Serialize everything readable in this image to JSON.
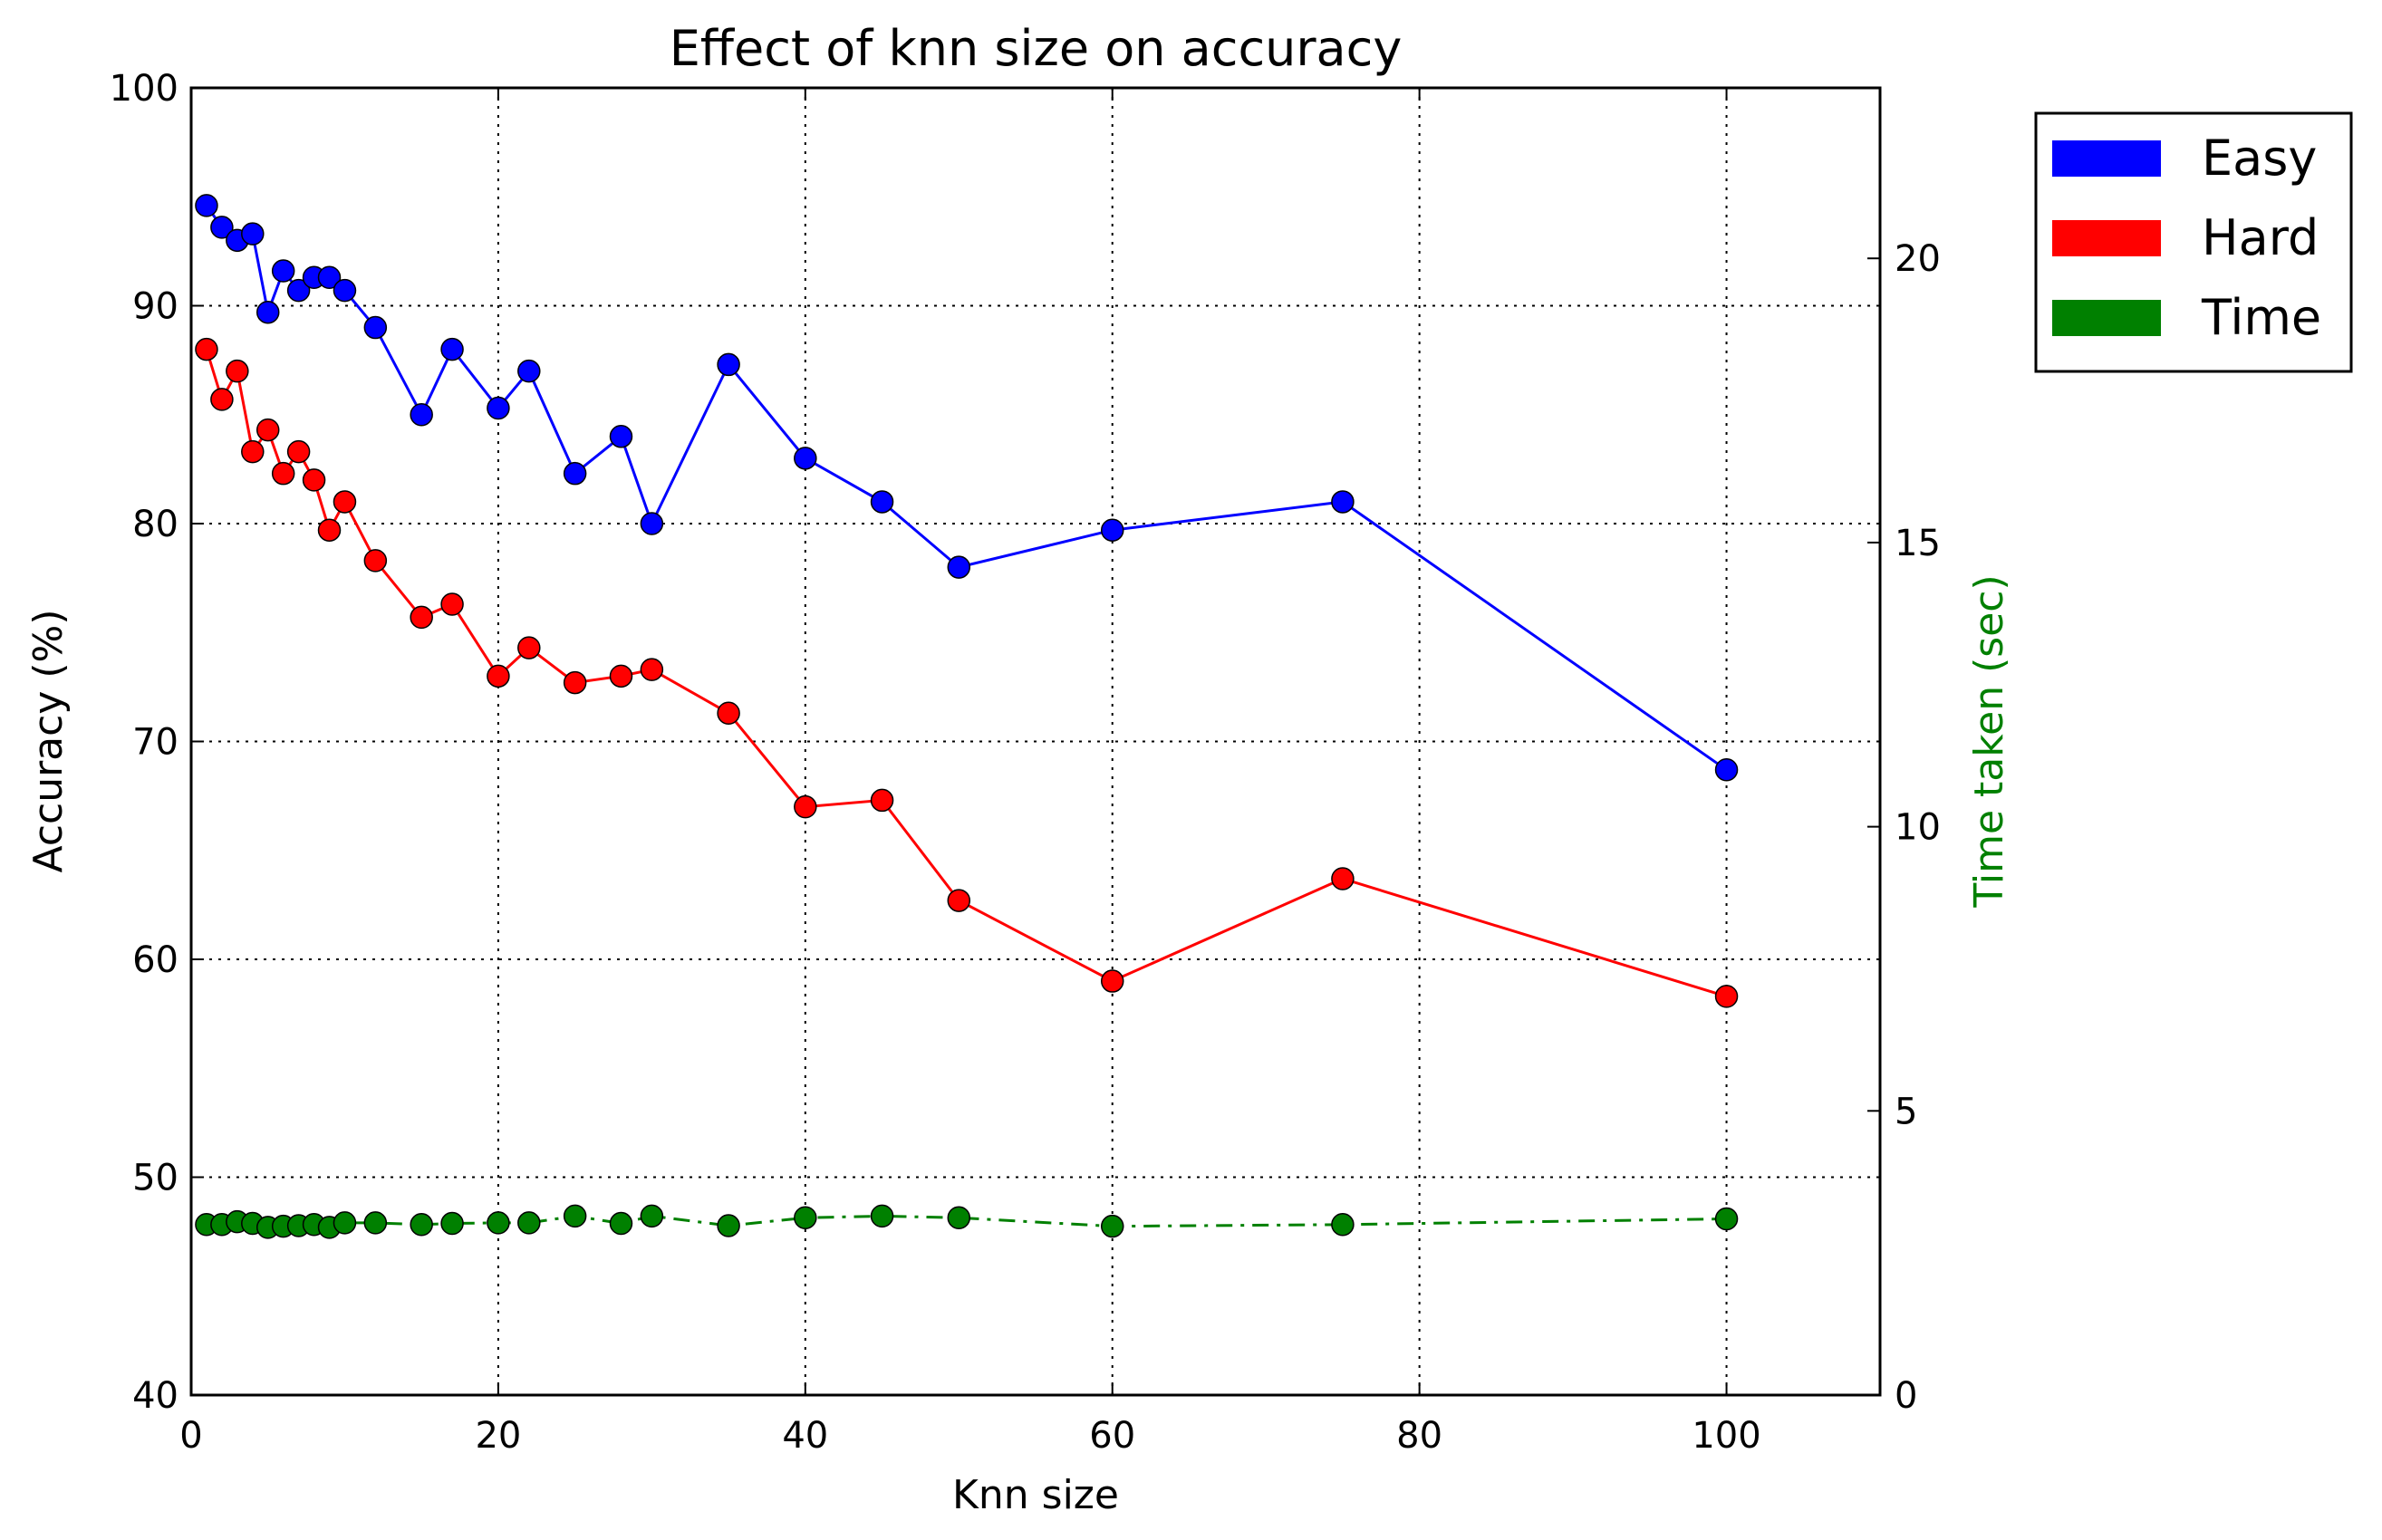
{
  "chart_data": {
    "type": "line",
    "title": "Effect of knn size on accuracy",
    "xlabel": "Knn size",
    "ylabel": "Accuracy (%)",
    "y2label": "Time taken (sec)",
    "xlim": [
      0,
      110
    ],
    "ylim": [
      40,
      100
    ],
    "y2lim": [
      0,
      23
    ],
    "xticks": [
      0,
      20,
      40,
      60,
      80,
      100
    ],
    "yticks": [
      40,
      50,
      60,
      70,
      80,
      90,
      100
    ],
    "y2ticks": [
      0,
      5,
      10,
      15,
      20
    ],
    "xtick_labels": [
      "0",
      "20",
      "40",
      "60",
      "80",
      "100"
    ],
    "ytick_labels": [
      "40",
      "50",
      "60",
      "70",
      "80",
      "90",
      "100"
    ],
    "y2tick_labels": [
      "0",
      "5",
      "10",
      "15",
      "20"
    ],
    "grid": true,
    "legend_position": "outside-right-top",
    "colors": {
      "easy": "#0000ff",
      "hard": "#ff0000",
      "time": "#008000",
      "axis_label2": "#008000"
    },
    "series": [
      {
        "name": "Easy",
        "axis": "left",
        "linestyle": "solid",
        "x": [
          1,
          2,
          3,
          4,
          5,
          6,
          7,
          8,
          9,
          10,
          12,
          15,
          17,
          20,
          22,
          25,
          28,
          30,
          35,
          40,
          45,
          50,
          60,
          75,
          100
        ],
        "values": [
          94.6,
          93.6,
          93.0,
          93.3,
          89.7,
          91.6,
          90.7,
          91.3,
          91.3,
          90.7,
          89.0,
          85.0,
          88.0,
          85.3,
          87.0,
          82.3,
          84.0,
          80.0,
          87.3,
          83.0,
          81.0,
          78.0,
          79.7,
          81.0,
          68.7
        ]
      },
      {
        "name": "Hard",
        "axis": "left",
        "linestyle": "solid",
        "x": [
          1,
          2,
          3,
          4,
          5,
          6,
          7,
          8,
          9,
          10,
          12,
          15,
          17,
          20,
          22,
          25,
          28,
          30,
          35,
          40,
          45,
          50,
          60,
          75,
          100
        ],
        "values": [
          88.0,
          85.7,
          87.0,
          83.3,
          84.3,
          82.3,
          83.3,
          82.0,
          79.7,
          81.0,
          78.3,
          75.7,
          76.3,
          73.0,
          74.3,
          72.7,
          73.0,
          73.3,
          71.3,
          67.0,
          67.3,
          62.7,
          59.0,
          63.7,
          58.3
        ]
      },
      {
        "name": "Time",
        "axis": "right",
        "linestyle": "dashdot",
        "x": [
          1,
          2,
          3,
          4,
          5,
          6,
          7,
          8,
          9,
          10,
          12,
          15,
          17,
          20,
          22,
          25,
          28,
          30,
          35,
          40,
          45,
          50,
          60,
          75,
          100
        ],
        "values": [
          3.0,
          3.0,
          3.05,
          3.02,
          2.95,
          2.97,
          2.98,
          3.0,
          2.95,
          3.03,
          3.03,
          3.0,
          3.02,
          3.03,
          3.03,
          3.15,
          3.02,
          3.15,
          2.98,
          3.12,
          3.15,
          3.12,
          2.97,
          3.0,
          3.1
        ]
      }
    ]
  }
}
